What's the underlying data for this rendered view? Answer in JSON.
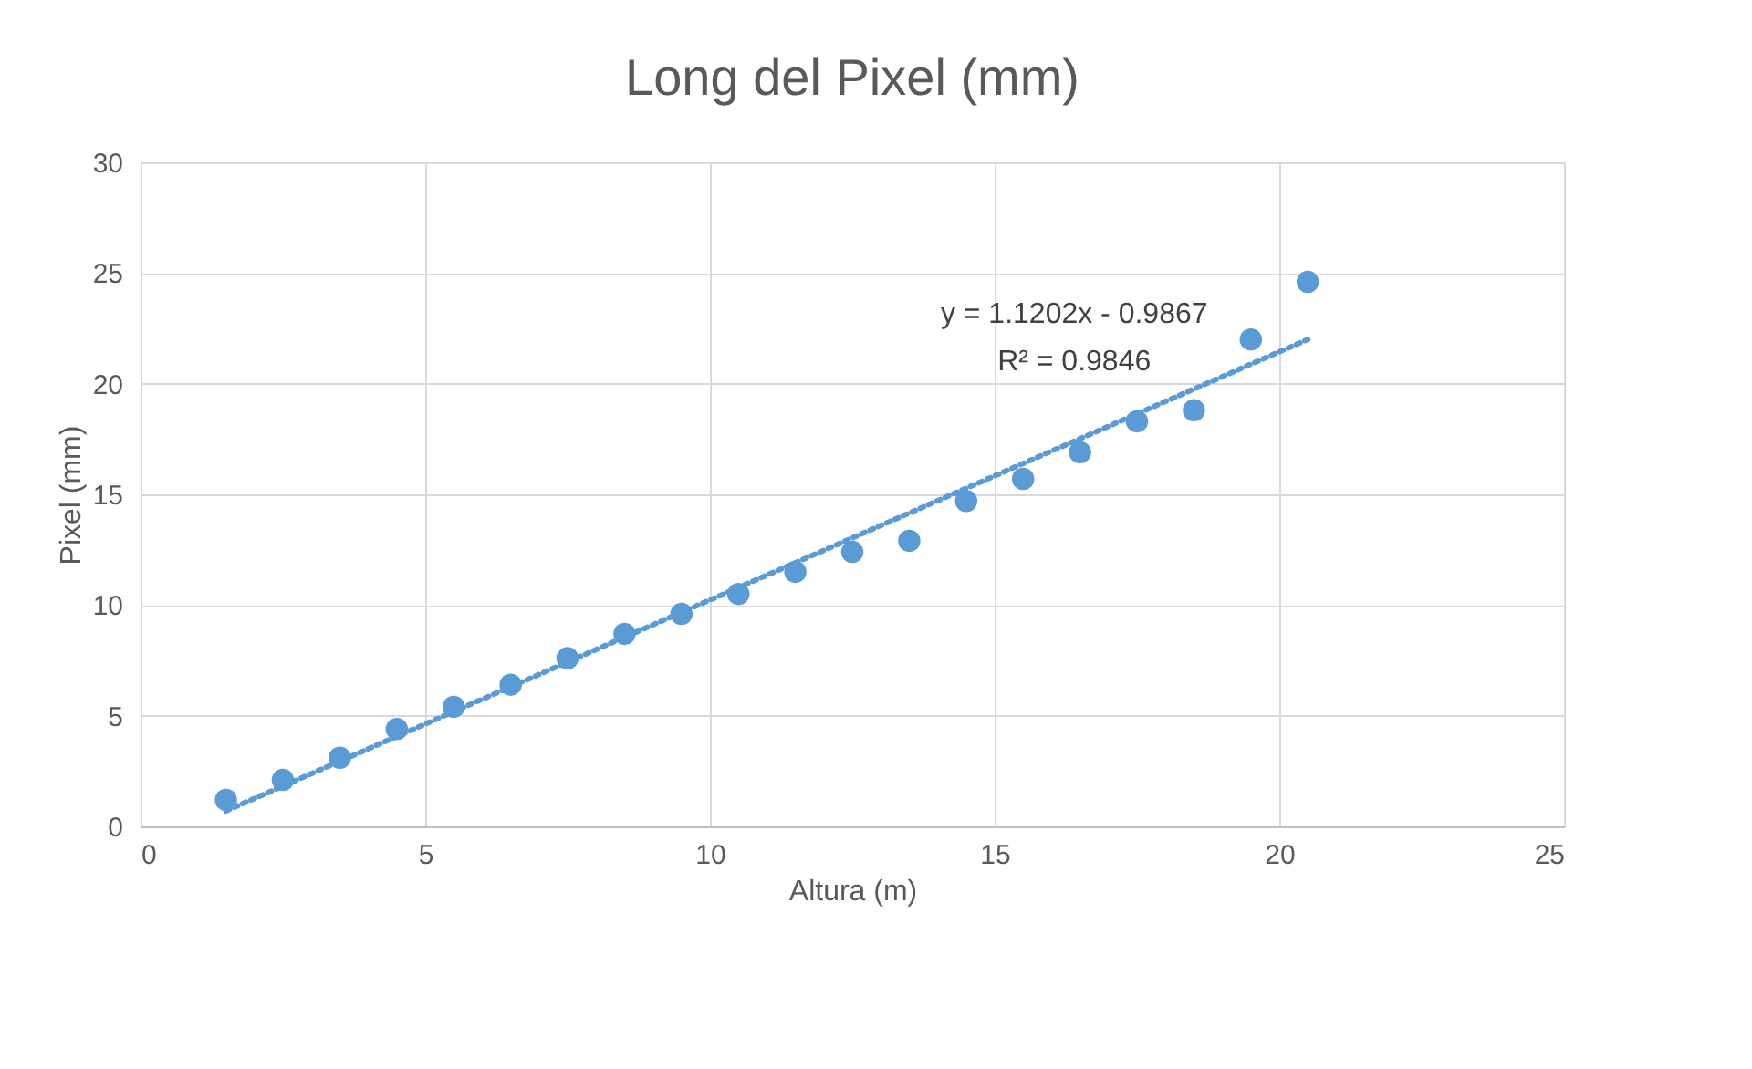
{
  "chart_data": {
    "type": "scatter",
    "title": "Long del Pixel (mm)",
    "xlabel": "Altura (m)",
    "ylabel": "Pixel (mm)",
    "xlim": [
      0,
      25
    ],
    "xticks": [
      0,
      5,
      10,
      15,
      20,
      25
    ],
    "ylim": [
      0,
      30
    ],
    "yticks": [
      0,
      5,
      10,
      15,
      20,
      25,
      30
    ],
    "grid": true,
    "series": [
      {
        "color": "#5b9bd5",
        "marker": "circle",
        "x": [
          1.5,
          2.5,
          3.5,
          4.5,
          5.5,
          6.5,
          7.5,
          8.5,
          9.5,
          10.5,
          11.5,
          12.5,
          13.5,
          14.5,
          15.5,
          16.5,
          17.5,
          18.5,
          19.5,
          20.5
        ],
        "values": [
          1.2,
          2.1,
          3.1,
          4.4,
          5.4,
          6.4,
          7.6,
          8.7,
          9.6,
          10.5,
          11.5,
          12.4,
          12.9,
          14.7,
          15.7,
          16.9,
          18.3,
          18.8,
          22.0,
          24.6
        ]
      },
      {
        "type": "line",
        "color": "#5b9bd5",
        "line_style": "dotted",
        "x": [
          1.5,
          20.5
        ],
        "values": [
          0.7,
          22.0
        ]
      }
    ],
    "annotations": [
      "y = 1.1202x - 0.9867",
      "R² = 0.9846"
    ]
  }
}
